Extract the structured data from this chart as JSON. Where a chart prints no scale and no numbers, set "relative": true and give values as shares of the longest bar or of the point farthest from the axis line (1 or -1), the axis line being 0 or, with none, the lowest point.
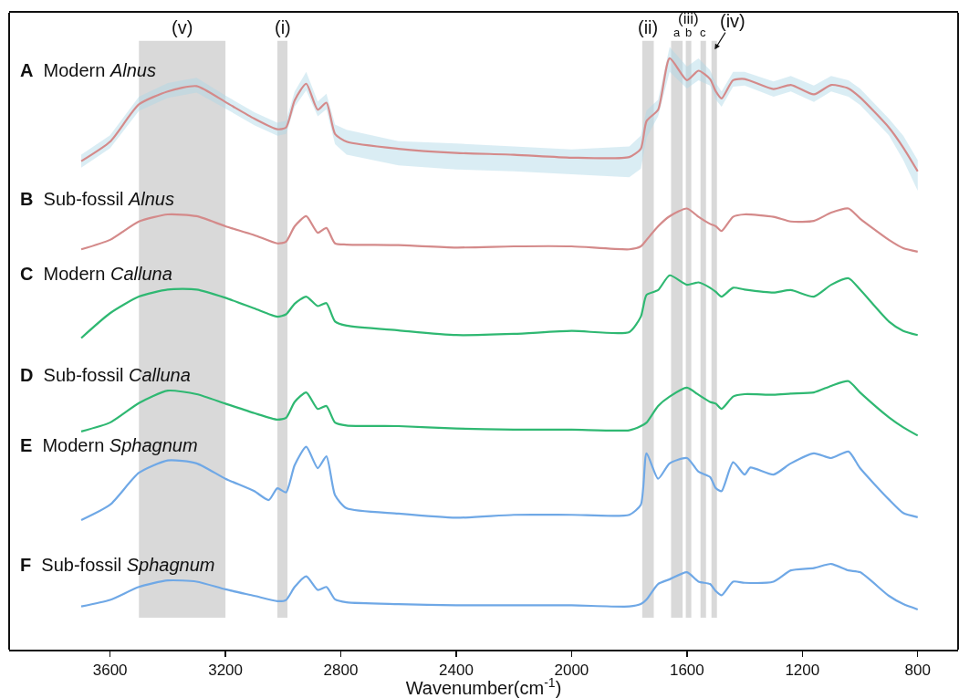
{
  "chart_data": {
    "type": "line",
    "relative": true,
    "xlabel": "Wavenumber(cm$^{-1}$)",
    "xlim": [
      3950,
      660
    ],
    "xticks": [
      3600,
      3200,
      2800,
      2400,
      2000,
      1600,
      1200,
      800
    ],
    "grid": false,
    "legend": false,
    "x": [
      3700,
      3600,
      3500,
      3400,
      3300,
      3200,
      3100,
      3020,
      2990,
      2960,
      2920,
      2880,
      2850,
      2820,
      2780,
      2600,
      2400,
      2200,
      2000,
      1800,
      1760,
      1740,
      1700,
      1660,
      1600,
      1560,
      1520,
      1500,
      1480,
      1440,
      1400,
      1300,
      1240,
      1160,
      1100,
      1040,
      1000,
      900,
      850,
      800
    ],
    "series": [
      {
        "name": "A Modern Alnus",
        "color": "#d48a8a",
        "values": [
          0.826,
          0.859,
          0.922,
          0.944,
          0.953,
          0.926,
          0.898,
          0.88,
          0.883,
          0.929,
          0.957,
          0.913,
          0.925,
          0.872,
          0.859,
          0.847,
          0.84,
          0.837,
          0.832,
          0.833,
          0.847,
          0.894,
          0.913,
          1.0,
          0.963,
          0.979,
          0.965,
          0.944,
          0.932,
          0.963,
          0.965,
          0.948,
          0.955,
          0.939,
          0.955,
          0.949,
          0.934,
          0.883,
          0.849,
          0.809
        ],
        "lower": [
          0.815,
          0.848,
          0.911,
          0.933,
          0.942,
          0.915,
          0.887,
          0.869,
          0.872,
          0.918,
          0.946,
          0.902,
          0.914,
          0.855,
          0.837,
          0.819,
          0.812,
          0.809,
          0.804,
          0.799,
          0.813,
          0.866,
          0.902,
          0.977,
          0.949,
          0.963,
          0.954,
          0.93,
          0.918,
          0.952,
          0.954,
          0.935,
          0.944,
          0.926,
          0.944,
          0.935,
          0.921,
          0.87,
          0.828,
          0.776
        ],
        "upper": [
          0.837,
          0.87,
          0.935,
          0.958,
          0.967,
          0.937,
          0.909,
          0.891,
          0.894,
          0.944,
          0.977,
          0.927,
          0.94,
          0.888,
          0.879,
          0.86,
          0.856,
          0.851,
          0.846,
          0.851,
          0.869,
          0.912,
          0.93,
          1.019,
          0.986,
          1.0,
          0.98,
          0.958,
          0.944,
          0.977,
          0.977,
          0.961,
          0.97,
          0.954,
          0.97,
          0.963,
          0.949,
          0.898,
          0.869,
          0.828
        ]
      },
      {
        "name": "B Sub-fossil Alnus",
        "color": "#d48a8a",
        "values": [
          0.677,
          0.693,
          0.724,
          0.736,
          0.733,
          0.716,
          0.701,
          0.687,
          0.69,
          0.716,
          0.733,
          0.705,
          0.713,
          0.687,
          0.685,
          0.684,
          0.68,
          0.682,
          0.682,
          0.677,
          0.682,
          0.693,
          0.716,
          0.733,
          0.746,
          0.732,
          0.72,
          0.716,
          0.708,
          0.732,
          0.736,
          0.732,
          0.724,
          0.725,
          0.739,
          0.746,
          0.729,
          0.693,
          0.679,
          0.673
        ]
      },
      {
        "name": "C Modern Calluna",
        "color": "#2fb872",
        "values": [
          0.527,
          0.569,
          0.597,
          0.609,
          0.609,
          0.595,
          0.577,
          0.563,
          0.567,
          0.585,
          0.597,
          0.581,
          0.586,
          0.555,
          0.548,
          0.54,
          0.532,
          0.534,
          0.539,
          0.537,
          0.563,
          0.6,
          0.608,
          0.633,
          0.617,
          0.621,
          0.612,
          0.605,
          0.597,
          0.612,
          0.609,
          0.604,
          0.608,
          0.597,
          0.617,
          0.628,
          0.609,
          0.555,
          0.539,
          0.532
        ]
      },
      {
        "name": "D Sub-fossil Calluna",
        "color": "#2fb872",
        "values": [
          0.369,
          0.384,
          0.417,
          0.438,
          0.432,
          0.416,
          0.4,
          0.389,
          0.392,
          0.419,
          0.435,
          0.407,
          0.412,
          0.384,
          0.379,
          0.378,
          0.374,
          0.372,
          0.372,
          0.371,
          0.378,
          0.384,
          0.412,
          0.428,
          0.443,
          0.431,
          0.419,
          0.416,
          0.407,
          0.428,
          0.432,
          0.431,
          0.433,
          0.435,
          0.446,
          0.454,
          0.435,
          0.393,
          0.376,
          0.362
        ]
      },
      {
        "name": "E Modern Sphagnum",
        "color": "#6fa8e6",
        "x": [
          3700,
          3600,
          3500,
          3400,
          3300,
          3200,
          3100,
          3050,
          3020,
          2990,
          2960,
          2920,
          2880,
          2850,
          2820,
          2780,
          2600,
          2400,
          2200,
          2000,
          1800,
          1760,
          1740,
          1700,
          1660,
          1600,
          1560,
          1520,
          1500,
          1480,
          1440,
          1400,
          1380,
          1300,
          1240,
          1160,
          1100,
          1040,
          1000,
          900,
          850,
          800
        ],
        "values": [
          0.219,
          0.245,
          0.299,
          0.32,
          0.315,
          0.289,
          0.268,
          0.253,
          0.273,
          0.266,
          0.312,
          0.343,
          0.307,
          0.327,
          0.261,
          0.239,
          0.23,
          0.223,
          0.228,
          0.228,
          0.228,
          0.245,
          0.332,
          0.289,
          0.315,
          0.324,
          0.301,
          0.292,
          0.273,
          0.268,
          0.317,
          0.296,
          0.308,
          0.296,
          0.315,
          0.332,
          0.324,
          0.335,
          0.307,
          0.254,
          0.231,
          0.224
        ]
      },
      {
        "name": "F Sub-fossil Sphagnum",
        "color": "#6fa8e6",
        "values": [
          0.073,
          0.084,
          0.106,
          0.117,
          0.115,
          0.102,
          0.091,
          0.082,
          0.084,
          0.106,
          0.124,
          0.101,
          0.106,
          0.085,
          0.08,
          0.077,
          0.075,
          0.075,
          0.075,
          0.073,
          0.077,
          0.085,
          0.111,
          0.119,
          0.131,
          0.115,
          0.111,
          0.099,
          0.092,
          0.115,
          0.113,
          0.115,
          0.134,
          0.138,
          0.145,
          0.134,
          0.131,
          0.091,
          0.077,
          0.068
        ]
      }
    ],
    "bands": [
      {
        "axis": "x",
        "from": 3500,
        "to": 3200,
        "label": "(v)",
        "color": "#d9d9d9"
      },
      {
        "axis": "x",
        "from": 3020,
        "to": 2985,
        "label": "(i)",
        "color": "#d9d9d9"
      },
      {
        "axis": "x",
        "from": 1755,
        "to": 1715,
        "label": "(ii)",
        "color": "#d9d9d9"
      },
      {
        "axis": "x",
        "from": 1655,
        "to": 1615,
        "label": "a",
        "color": "#d9d9d9"
      },
      {
        "axis": "x",
        "from": 1604,
        "to": 1585,
        "label": "b",
        "color": "#d9d9d9"
      },
      {
        "axis": "x",
        "from": 1553,
        "to": 1534,
        "label": "c",
        "color": "#d9d9d9"
      },
      {
        "axis": "x",
        "from": 1515,
        "to": 1496,
        "label": "(iv)",
        "color": "#d9d9d9"
      }
    ],
    "annotations": [
      "(iii)"
    ]
  }
}
